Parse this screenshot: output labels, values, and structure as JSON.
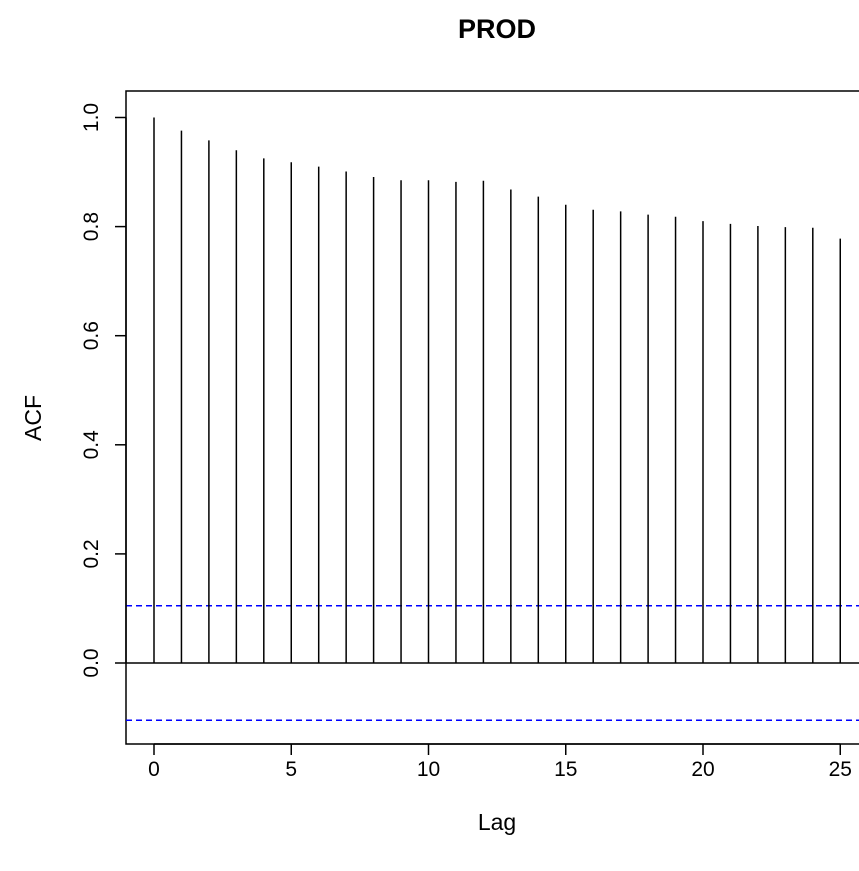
{
  "chart_data": {
    "type": "bar",
    "title": "PROD",
    "xlabel": "Lag",
    "ylabel": "ACF",
    "x": [
      0,
      1,
      2,
      3,
      4,
      5,
      6,
      7,
      8,
      9,
      10,
      11,
      12,
      13,
      14,
      15,
      16,
      17,
      18,
      19,
      20,
      21,
      22,
      23,
      24,
      25
    ],
    "values": [
      1.0,
      0.976,
      0.958,
      0.94,
      0.925,
      0.918,
      0.91,
      0.901,
      0.891,
      0.885,
      0.885,
      0.882,
      0.884,
      0.868,
      0.855,
      0.84,
      0.831,
      0.828,
      0.822,
      0.818,
      0.81,
      0.805,
      0.801,
      0.799,
      0.798,
      0.778
    ],
    "xlim": [
      -1,
      25.5
    ],
    "ylim": [
      -0.16,
      1.05
    ],
    "xticks": [
      0,
      5,
      10,
      15,
      20,
      25
    ],
    "xtick_labels": [
      "0",
      "5",
      "10",
      "15",
      "20",
      "25"
    ],
    "yticks": [
      0.0,
      0.2,
      0.4,
      0.6,
      0.8,
      1.0
    ],
    "ytick_labels": [
      "0.0",
      "0.2",
      "0.4",
      "0.6",
      "0.8",
      "1.0"
    ],
    "confidence_bound": 0.105,
    "zero_line": true,
    "grid": false,
    "colors": {
      "bars": "#000000",
      "confidence": "#0000ff",
      "axis": "#000000"
    }
  }
}
